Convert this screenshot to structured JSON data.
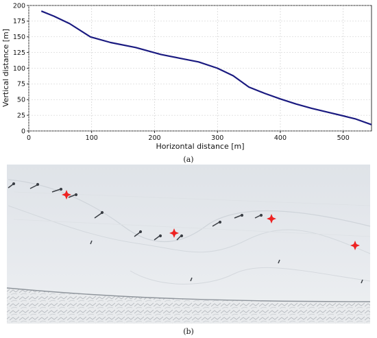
{
  "captions": {
    "a": "(a)",
    "b": "(b)"
  },
  "chart_data": {
    "type": "line",
    "xlabel": "Horizontal distance [m]",
    "ylabel": "Vertical distance [m]",
    "xlim": [
      0,
      545
    ],
    "ylim": [
      0,
      200
    ],
    "xticks": [
      0,
      100,
      200,
      300,
      400,
      500
    ],
    "yticks": [
      0,
      25,
      50,
      75,
      100,
      125,
      150,
      175,
      200
    ],
    "grid": true,
    "line_color": "#1a1a80",
    "series": [
      {
        "x": [
          20,
          40,
          65,
          98,
          130,
          170,
          210,
          240,
          270,
          300,
          325,
          350,
          375,
          400,
          425,
          450,
          475,
          500,
          520,
          545
        ],
        "y": [
          191,
          183,
          171,
          150,
          141,
          133,
          122,
          116,
          110,
          100,
          88,
          70,
          60,
          51,
          43,
          36,
          30,
          24,
          19,
          10
        ]
      }
    ]
  },
  "photo": {
    "snow_color": "#e4e8ec",
    "marker_color": "#ee2222",
    "markers_count": 4
  }
}
